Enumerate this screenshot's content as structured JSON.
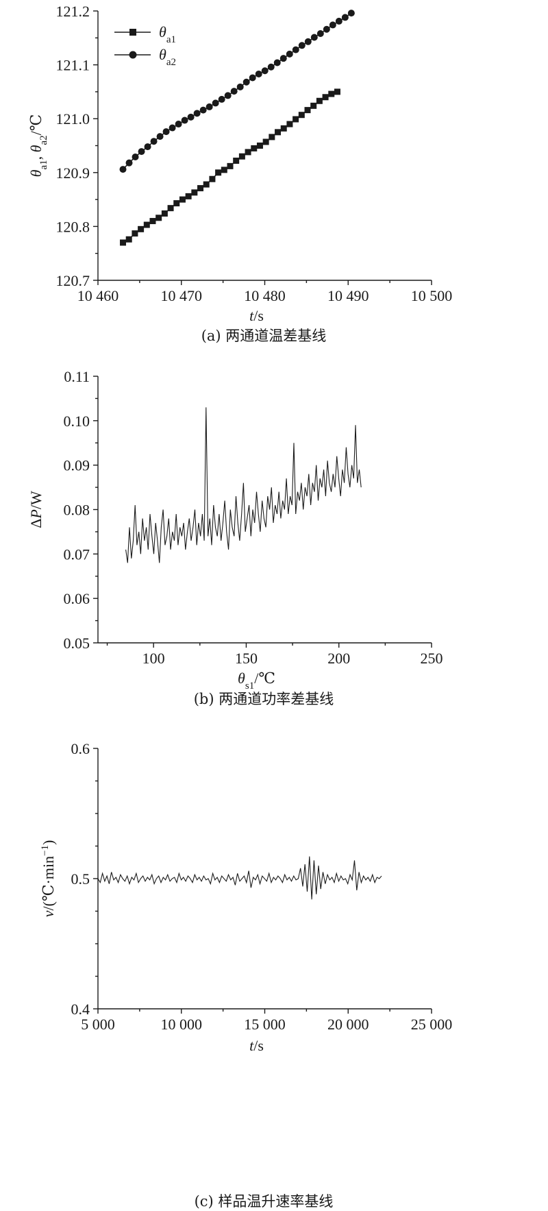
{
  "chart_data": [
    {
      "type": "line",
      "caption": "(a) 两通道温差基线",
      "xlabel": {
        "italic": "t",
        "rest": "/s"
      },
      "ylabel": {
        "parts": [
          {
            "t": "θ",
            "italic": true
          },
          {
            "t": "a1",
            "sub": true
          },
          {
            "t": ", "
          },
          {
            "t": "θ",
            "italic": true
          },
          {
            "t": "a2",
            "sub": true
          },
          {
            "t": "/℃"
          }
        ]
      },
      "xlim": [
        10460,
        10500
      ],
      "ylim": [
        120.7,
        121.2
      ],
      "xticks": [
        10460,
        10470,
        10480,
        10490,
        10500
      ],
      "xtick_labels": [
        "10 460",
        "10 470",
        "10 480",
        "10 490",
        "10 500"
      ],
      "yticks": [
        120.7,
        120.8,
        120.9,
        121.0,
        121.1,
        121.2
      ],
      "ytick_labels": [
        "120.7",
        "120.8",
        "120.9",
        "121.0",
        "121.1",
        "121.2"
      ],
      "legend_position": "top-left",
      "series": [
        {
          "name": "θa1",
          "legend_main": "θ",
          "legend_sub": "a1",
          "marker": "square",
          "x_start": 10463,
          "x_step": 0.714,
          "values": [
            120.77,
            120.776,
            120.787,
            120.795,
            120.803,
            120.81,
            120.816,
            120.824,
            120.834,
            120.843,
            120.85,
            120.856,
            120.863,
            120.871,
            120.878,
            120.888,
            120.9,
            120.905,
            120.912,
            120.922,
            120.93,
            120.938,
            120.945,
            120.95,
            120.957,
            120.966,
            120.975,
            120.982,
            120.99,
            120.999,
            121.007,
            121.016,
            121.024,
            121.033,
            121.04,
            121.046,
            121.05
          ]
        },
        {
          "name": "θa2",
          "legend_main": "θ",
          "legend_sub": "a2",
          "marker": "circle",
          "x_start": 10463,
          "x_step": 0.74,
          "values": [
            120.906,
            120.918,
            120.929,
            120.939,
            120.948,
            120.958,
            120.967,
            120.976,
            120.983,
            120.99,
            120.997,
            121.003,
            121.01,
            121.016,
            121.022,
            121.029,
            121.036,
            121.043,
            121.051,
            121.059,
            121.068,
            121.076,
            121.083,
            121.089,
            121.096,
            121.104,
            121.112,
            121.12,
            121.128,
            121.136,
            121.143,
            121.151,
            121.158,
            121.166,
            121.174,
            121.181,
            121.188,
            121.196
          ]
        }
      ]
    },
    {
      "type": "line",
      "caption": "(b) 两通道功率差基线",
      "xlabel": {
        "parts": [
          {
            "t": "θ",
            "italic": true
          },
          {
            "t": "s1",
            "sub": true
          },
          {
            "t": "/℃"
          }
        ]
      },
      "ylabel": {
        "parts": [
          {
            "t": "Δ"
          },
          {
            "t": "P",
            "italic": true
          },
          {
            "t": "/W"
          }
        ]
      },
      "xlim": [
        70,
        250
      ],
      "ylim": [
        0.05,
        0.11
      ],
      "xticks": [
        100,
        150,
        200,
        250
      ],
      "xtick_labels": [
        "100",
        "150",
        "200",
        "250"
      ],
      "minor_xticks": [
        75,
        125,
        175,
        225
      ],
      "yticks": [
        0.05,
        0.06,
        0.07,
        0.08,
        0.09,
        0.1,
        0.11
      ],
      "ytick_labels": [
        "0.05",
        "0.06",
        "0.07",
        "0.08",
        "0.09",
        "0.10",
        "0.11"
      ],
      "series": [
        {
          "name": "",
          "x_start": 85,
          "x_end": 212,
          "values": [
            0.071,
            0.068,
            0.076,
            0.069,
            0.073,
            0.081,
            0.072,
            0.075,
            0.07,
            0.078,
            0.073,
            0.076,
            0.071,
            0.079,
            0.074,
            0.07,
            0.077,
            0.073,
            0.068,
            0.076,
            0.08,
            0.072,
            0.074,
            0.078,
            0.071,
            0.075,
            0.073,
            0.079,
            0.072,
            0.076,
            0.074,
            0.077,
            0.071,
            0.075,
            0.078,
            0.073,
            0.076,
            0.08,
            0.072,
            0.077,
            0.074,
            0.079,
            0.073,
            0.103,
            0.074,
            0.078,
            0.072,
            0.081,
            0.076,
            0.074,
            0.079,
            0.073,
            0.077,
            0.082,
            0.075,
            0.071,
            0.08,
            0.076,
            0.074,
            0.083,
            0.077,
            0.073,
            0.079,
            0.086,
            0.075,
            0.078,
            0.081,
            0.074,
            0.08,
            0.077,
            0.084,
            0.079,
            0.075,
            0.082,
            0.078,
            0.076,
            0.083,
            0.08,
            0.085,
            0.077,
            0.081,
            0.079,
            0.084,
            0.078,
            0.082,
            0.08,
            0.087,
            0.079,
            0.083,
            0.081,
            0.095,
            0.079,
            0.084,
            0.082,
            0.086,
            0.08,
            0.085,
            0.083,
            0.088,
            0.081,
            0.086,
            0.084,
            0.09,
            0.082,
            0.087,
            0.085,
            0.089,
            0.083,
            0.091,
            0.086,
            0.084,
            0.088,
            0.085,
            0.092,
            0.087,
            0.083,
            0.089,
            0.086,
            0.094,
            0.088,
            0.085,
            0.09,
            0.087,
            0.099,
            0.086,
            0.089,
            0.085
          ]
        }
      ]
    },
    {
      "type": "line",
      "caption": "(c) 样品温升速率基线",
      "xlabel": {
        "italic": "t",
        "rest": "/s"
      },
      "ylabel": {
        "parts": [
          {
            "t": "v",
            "italic": true
          },
          {
            "t": "/(℃·min"
          },
          {
            "t": "−1",
            "sup": true
          },
          {
            "t": ")"
          }
        ]
      },
      "xlim": [
        5000,
        25000
      ],
      "ylim": [
        0.4,
        0.6
      ],
      "xticks": [
        5000,
        10000,
        15000,
        20000,
        25000
      ],
      "xtick_labels": [
        "5 000",
        "10 000",
        "15 000",
        "20 000",
        "25 000"
      ],
      "minor_xticks": [
        7500,
        12500,
        17500,
        22500
      ],
      "yticks": [
        0.4,
        0.5,
        0.6
      ],
      "ytick_labels": [
        "0.4",
        "0.5",
        "0.6"
      ],
      "minor_yticks": [
        0.425,
        0.45,
        0.475,
        0.525,
        0.55,
        0.575
      ],
      "series": [
        {
          "name": "",
          "x_start": 5000,
          "x_end": 22000,
          "values": [
            0.5,
            0.497,
            0.504,
            0.498,
            0.502,
            0.496,
            0.505,
            0.499,
            0.501,
            0.497,
            0.503,
            0.5,
            0.498,
            0.502,
            0.496,
            0.501,
            0.499,
            0.504,
            0.497,
            0.5,
            0.502,
            0.498,
            0.501,
            0.499,
            0.503,
            0.496,
            0.5,
            0.502,
            0.497,
            0.501,
            0.499,
            0.503,
            0.498,
            0.5,
            0.501,
            0.497,
            0.504,
            0.499,
            0.501,
            0.498,
            0.502,
            0.5,
            0.497,
            0.503,
            0.499,
            0.501,
            0.498,
            0.502,
            0.499,
            0.5,
            0.496,
            0.504,
            0.499,
            0.501,
            0.497,
            0.502,
            0.5,
            0.498,
            0.503,
            0.499,
            0.501,
            0.495,
            0.504,
            0.498,
            0.5,
            0.502,
            0.497,
            0.506,
            0.493,
            0.501,
            0.499,
            0.503,
            0.496,
            0.502,
            0.5,
            0.498,
            0.504,
            0.497,
            0.501,
            0.499,
            0.502,
            0.5,
            0.497,
            0.503,
            0.499,
            0.501,
            0.498,
            0.502,
            0.499,
            0.5,
            0.508,
            0.494,
            0.511,
            0.49,
            0.517,
            0.484,
            0.514,
            0.488,
            0.51,
            0.492,
            0.505,
            0.496,
            0.503,
            0.499,
            0.501,
            0.497,
            0.504,
            0.498,
            0.502,
            0.499,
            0.5,
            0.496,
            0.503,
            0.499,
            0.514,
            0.491,
            0.505,
            0.497,
            0.502,
            0.499,
            0.501,
            0.498,
            0.503,
            0.497,
            0.501,
            0.5,
            0.502
          ]
        }
      ]
    }
  ]
}
